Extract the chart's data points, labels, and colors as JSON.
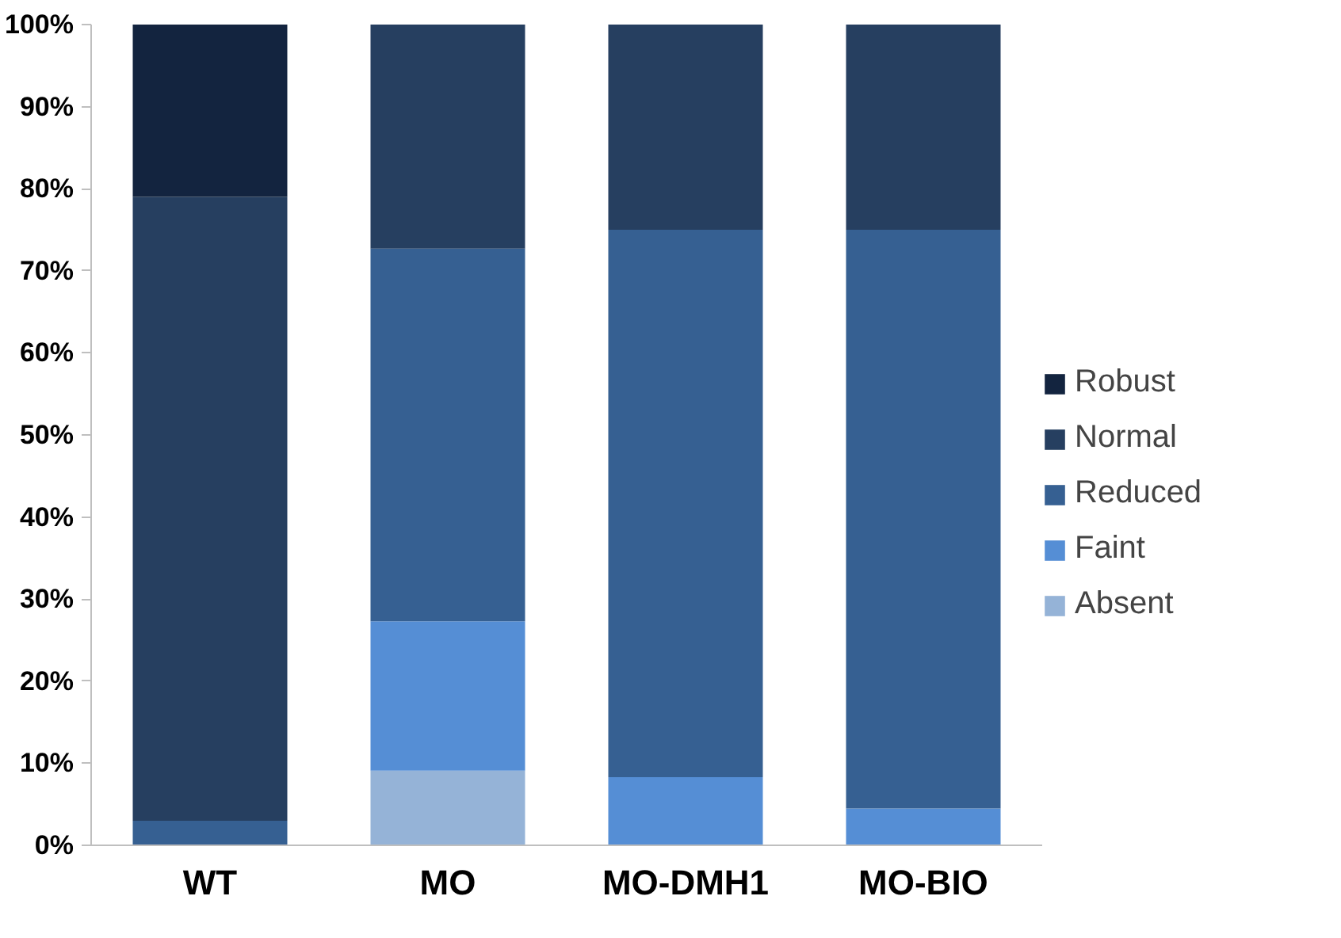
{
  "chart_data": {
    "type": "bar",
    "stacked": true,
    "categories": [
      "WT",
      "MO",
      "MO-DMH1",
      "MO-BIO"
    ],
    "series": [
      {
        "name": "Absent",
        "color": "#95b3d7",
        "values": [
          0,
          9.1,
          0,
          0
        ]
      },
      {
        "name": "Faint",
        "color": "#558ed5",
        "values": [
          0,
          18.2,
          8.3,
          4.5
        ]
      },
      {
        "name": "Reduced",
        "color": "#366092",
        "values": [
          3,
          45.4,
          66.7,
          70.5
        ]
      },
      {
        "name": "Normal",
        "color": "#263f60",
        "values": [
          76,
          27.3,
          25,
          25
        ]
      },
      {
        "name": "Robust",
        "color": "#13243f",
        "values": [
          21,
          0,
          0,
          0
        ]
      }
    ],
    "ylim": [
      0,
      100
    ],
    "yticks": [
      {
        "value": 0,
        "label": "0%"
      },
      {
        "value": 10,
        "label": "10%"
      },
      {
        "value": 20,
        "label": "20%"
      },
      {
        "value": 30,
        "label": "30%"
      },
      {
        "value": 40,
        "label": "40%"
      },
      {
        "value": 50,
        "label": "50%"
      },
      {
        "value": 60,
        "label": "60%"
      },
      {
        "value": 70,
        "label": "70%"
      },
      {
        "value": 80,
        "label": "80%"
      },
      {
        "value": 90,
        "label": "90%"
      },
      {
        "value": 100,
        "label": "100%"
      }
    ],
    "grid": false,
    "legend": "right"
  }
}
